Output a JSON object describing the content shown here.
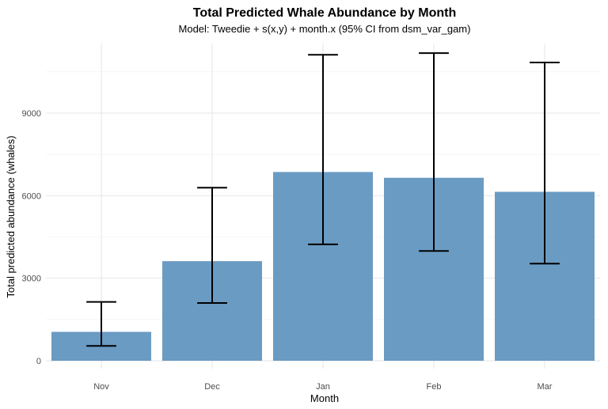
{
  "chart_data": {
    "type": "bar",
    "title": "Total Predicted Whale Abundance by Month",
    "subtitle": "Model: Tweedie + s(x,y) + month.x (95% CI from dsm_var_gam)",
    "xlabel": "Month",
    "ylabel": "Total predicted abundance (whales)",
    "categories": [
      "Nov",
      "Dec",
      "Jan",
      "Feb",
      "Mar"
    ],
    "values": [
      1050,
      3620,
      6860,
      6650,
      6140
    ],
    "ci_lower": [
      540,
      2100,
      4230,
      3990,
      3530
    ],
    "ci_upper": [
      2140,
      6290,
      11120,
      11180,
      10840
    ],
    "yticks": [
      0,
      3000,
      6000,
      9000
    ],
    "ylim": [
      -100,
      11800
    ],
    "grid": true,
    "bar_color": "#6a9bc3",
    "errorbar_color": "#000000"
  }
}
